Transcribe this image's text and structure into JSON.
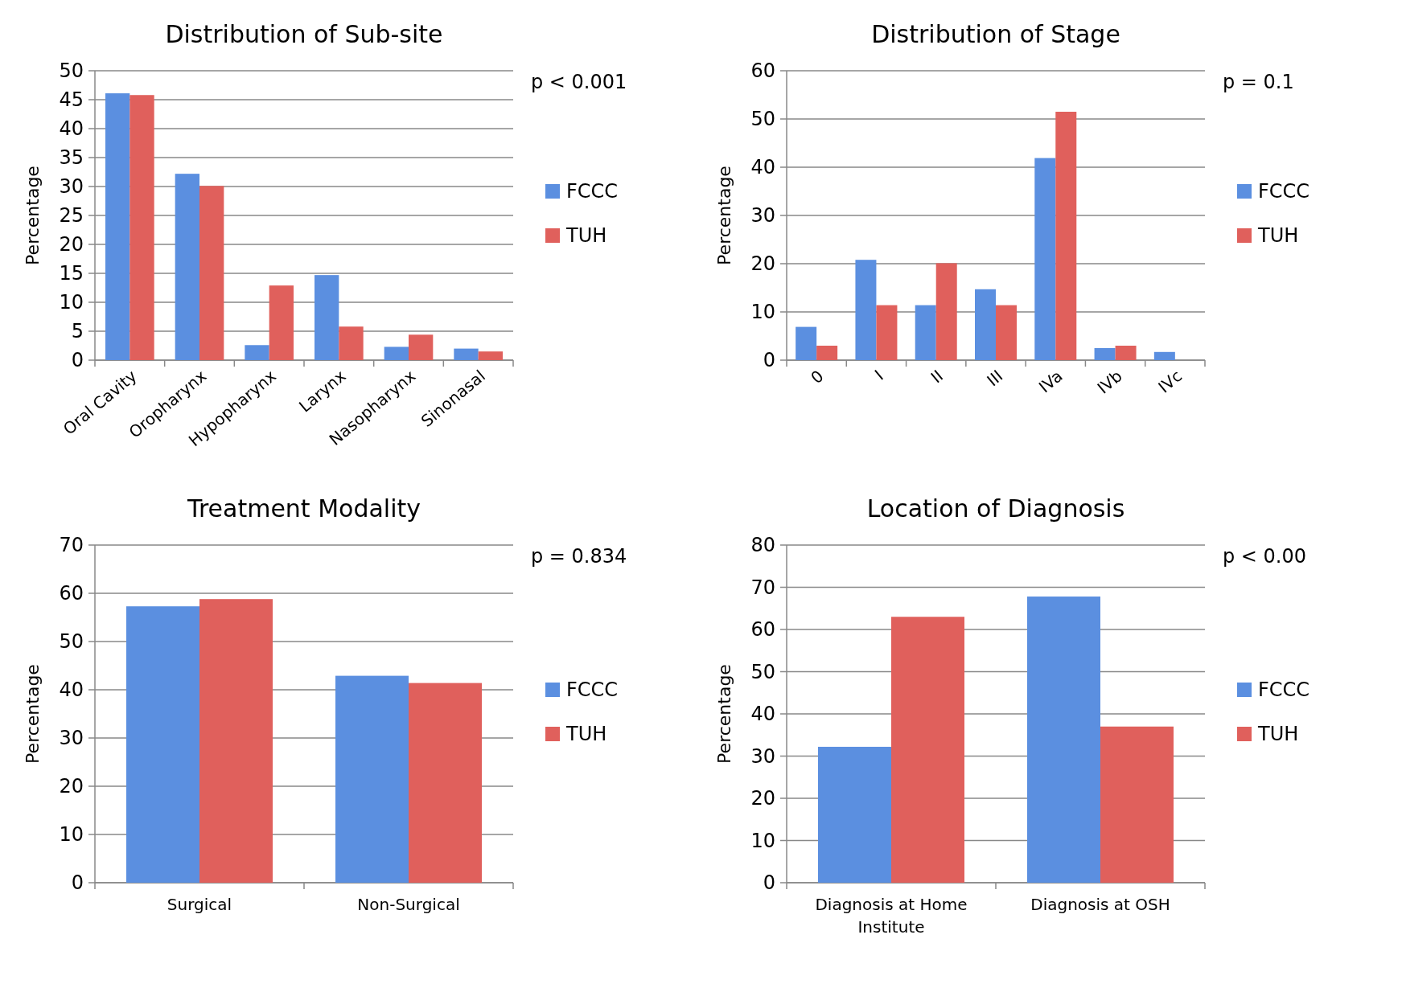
{
  "chart_data": [
    {
      "type": "bar",
      "title": "Distribution of Sub-site",
      "ylabel": "Percentage",
      "categories": [
        "Oral Cavity",
        "Oropharynx",
        "Hypopharynx",
        "Larynx",
        "Nasopharynx",
        "Sinonasal"
      ],
      "series": [
        {
          "name": "FCCC",
          "color": "#5b8fe0",
          "values": [
            46.1,
            32.2,
            2.6,
            14.7,
            2.3,
            2.0
          ]
        },
        {
          "name": "TUH",
          "color": "#e0605c",
          "values": [
            45.8,
            30.1,
            12.9,
            5.8,
            4.4,
            1.5
          ]
        }
      ],
      "ylim": [
        0,
        50
      ],
      "yticks": [
        0,
        5,
        10,
        15,
        20,
        25,
        30,
        35,
        40,
        45,
        50
      ],
      "grid": "y",
      "legend": "right",
      "annotations": [
        "p < 0.001"
      ]
    },
    {
      "type": "bar",
      "title": "Distribution of Stage",
      "ylabel": "Percentage",
      "categories": [
        "0",
        "I",
        "II",
        "III",
        "IVa",
        "IVb",
        "IVc"
      ],
      "series": [
        {
          "name": "FCCC",
          "color": "#5b8fe0",
          "values": [
            6.9,
            20.8,
            11.4,
            14.7,
            41.9,
            2.5,
            1.7
          ]
        },
        {
          "name": "TUH",
          "color": "#e0605c",
          "values": [
            3.0,
            11.4,
            20.1,
            11.4,
            51.5,
            3.0,
            null
          ]
        }
      ],
      "ylim": [
        0,
        60
      ],
      "yticks": [
        0,
        10,
        20,
        30,
        40,
        50,
        60
      ],
      "grid": "y",
      "legend": "right",
      "annotations": [
        "p = 0.1"
      ]
    },
    {
      "type": "bar",
      "title": "Treatment Modality",
      "ylabel": "Percentage",
      "categories": [
        "Surgical",
        "Non-Surgical"
      ],
      "series": [
        {
          "name": "FCCC",
          "color": "#5b8fe0",
          "values": [
            57.3,
            42.9
          ]
        },
        {
          "name": "TUH",
          "color": "#e0605c",
          "values": [
            58.8,
            41.4
          ]
        }
      ],
      "ylim": [
        0,
        70
      ],
      "yticks": [
        0,
        10,
        20,
        30,
        40,
        50,
        60,
        70
      ],
      "grid": "y",
      "legend": "right",
      "annotations": [
        "p = 0.834"
      ]
    },
    {
      "type": "bar",
      "title": "Location of Diagnosis",
      "ylabel": "Percentage",
      "categories": [
        "Diagnosis at Home Institute",
        "Diagnosis at OSH"
      ],
      "series": [
        {
          "name": "FCCC",
          "color": "#5b8fe0",
          "values": [
            32.2,
            67.8
          ]
        },
        {
          "name": "TUH",
          "color": "#e0605c",
          "values": [
            63.0,
            37.0
          ]
        }
      ],
      "ylim": [
        0,
        80
      ],
      "yticks": [
        0,
        10,
        20,
        30,
        40,
        50,
        60,
        70,
        80
      ],
      "grid": "y",
      "legend": "right",
      "annotations": [
        "p < 0.00"
      ]
    }
  ]
}
